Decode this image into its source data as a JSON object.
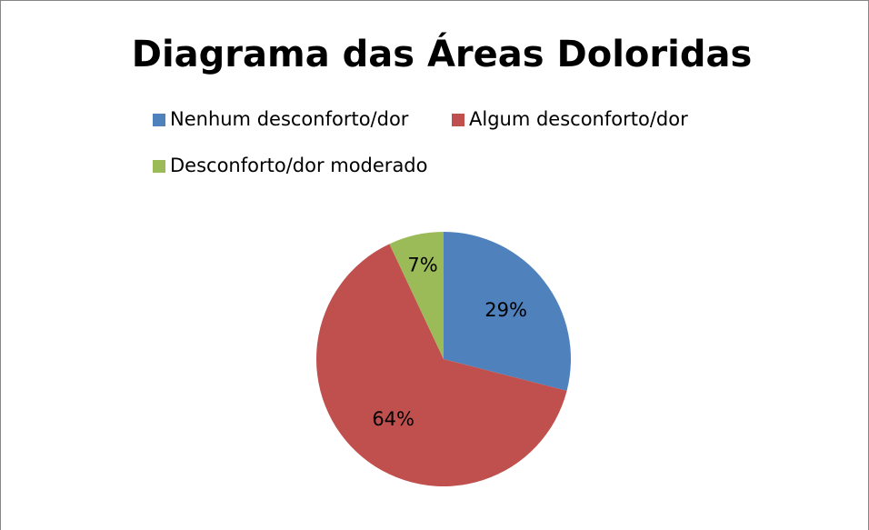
{
  "chart_data": {
    "type": "pie",
    "title": "Diagrama das Áreas Doloridas",
    "categories": [
      "Nenhum desconforto/dor",
      "Algum desconforto/dor",
      "Desconforto/dor moderado"
    ],
    "values": [
      29,
      64,
      7
    ],
    "value_labels": [
      "29%",
      "64%",
      "7%"
    ],
    "colors": [
      "#4f81bd",
      "#c0504d",
      "#9bbb59"
    ],
    "legend": "top"
  }
}
